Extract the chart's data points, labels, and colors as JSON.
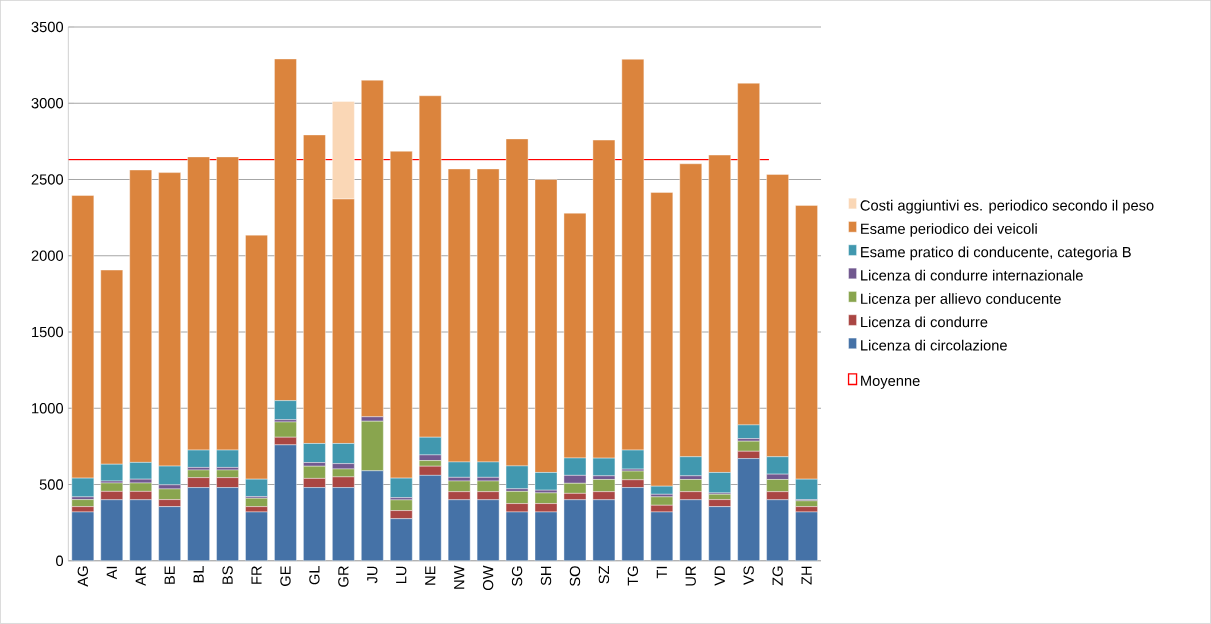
{
  "chart_data": {
    "type": "bar",
    "stacked": true,
    "legend": "right",
    "grid": "y",
    "categories": [
      "AG",
      "AI",
      "AR",
      "BE",
      "BL",
      "BS",
      "FR",
      "GE",
      "GL",
      "GR",
      "JU",
      "LU",
      "NE",
      "NW",
      "OW",
      "SG",
      "SH",
      "SO",
      "SZ",
      "TG",
      "TI",
      "UR",
      "VD",
      "VS",
      "ZG",
      "ZH"
    ],
    "ylim": [
      0,
      3500
    ],
    "yticks": [
      0,
      500,
      1000,
      1500,
      2000,
      2500,
      3000,
      3500
    ],
    "series": [
      {
        "name": "Licenza di circolazione",
        "color": "#4572a7",
        "values": [
          320,
          400,
          400,
          355,
          480,
          480,
          320,
          760,
          480,
          480,
          590,
          276,
          560,
          400,
          400,
          320,
          320,
          400,
          400,
          480,
          320,
          400,
          355,
          670,
          400,
          320
        ]
      },
      {
        "name": "Licenza di condurre",
        "color": "#aa4643",
        "values": [
          35,
          55,
          55,
          46,
          65,
          65,
          35,
          50,
          60,
          70,
          0,
          53,
          60,
          53,
          53,
          55,
          55,
          42,
          53,
          51,
          44,
          53,
          46,
          48,
          53,
          35
        ]
      },
      {
        "name": "Licenza per allievo conducente",
        "color": "#89a54e",
        "values": [
          46,
          55,
          55,
          70,
          50,
          50,
          55,
          100,
          80,
          52,
          325,
          70,
          37,
          70,
          70,
          80,
          70,
          66,
          80,
          57,
          55,
          80,
          35,
          66,
          80,
          38
        ]
      },
      {
        "name": "Licenza di condurre internazionale",
        "color": "#71588f",
        "values": [
          18,
          13,
          25,
          27,
          17,
          17,
          11,
          15,
          24,
          35,
          29,
          15,
          37,
          24,
          24,
          17,
          18,
          52,
          24,
          13,
          17,
          24,
          9,
          17,
          35,
          8
        ]
      },
      {
        "name": "Esame pratico di conducente, categoria B",
        "color": "#4198af",
        "values": [
          123,
          110,
          110,
          123,
          114,
          114,
          114,
          125,
          125,
          132,
          0,
          128,
          116,
          101,
          101,
          150,
          116,
          114,
          116,
          125,
          53,
          125,
          134,
          90,
          114,
          134
        ]
      },
      {
        "name": "Esame periodico dei veicoli",
        "color": "#db843d",
        "values": [
          1853,
          1273,
          1917,
          1924,
          1922,
          1922,
          1600,
          2240,
          2023,
          1603,
          2207,
          2143,
          2239,
          1921,
          1921,
          2144,
          1921,
          1605,
          2085,
          2562,
          1926,
          1921,
          2081,
          2240,
          1851,
          1795
        ]
      },
      {
        "name": "Costi aggiuntivi es. periodico secondo il peso",
        "color": "#fad7b6",
        "values": [
          0,
          0,
          0,
          0,
          0,
          0,
          0,
          0,
          0,
          640,
          0,
          0,
          0,
          0,
          0,
          0,
          0,
          0,
          0,
          0,
          0,
          0,
          0,
          0,
          0,
          0
        ]
      }
    ],
    "ref_lines": [
      {
        "axis": "y",
        "value": 2630,
        "label": "Moyenne",
        "color": "#ff0000"
      }
    ]
  }
}
